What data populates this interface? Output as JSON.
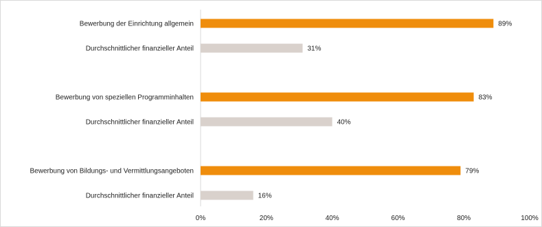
{
  "chart_data": {
    "type": "bar",
    "orientation": "horizontal",
    "categories": [
      "Bewerbung der Einrichtung allgemein",
      "Durchschnittlicher finanzieller Anteil",
      "Bewerbung von speziellen Programminhalten",
      "Durchschnittlicher finanzieller Anteil",
      "Bewerbung von Bildungs- und Vermittlungsangeboten",
      "Durchschnittlicher finanzieller Anteil"
    ],
    "values": [
      89,
      31,
      83,
      40,
      79,
      16
    ],
    "value_labels": [
      "89%",
      "31%",
      "83%",
      "40%",
      "79%",
      "16%"
    ],
    "colors": [
      "#ef8d0c",
      "#d9d1cc",
      "#ef8d0c",
      "#d9d1cc",
      "#ef8d0c",
      "#d9d1cc"
    ],
    "xlim": [
      0,
      100
    ],
    "xticks": [
      0,
      20,
      40,
      60,
      80,
      100
    ],
    "xtick_labels": [
      "0%",
      "20%",
      "40%",
      "60%",
      "80%",
      "100%"
    ],
    "grid": false
  }
}
